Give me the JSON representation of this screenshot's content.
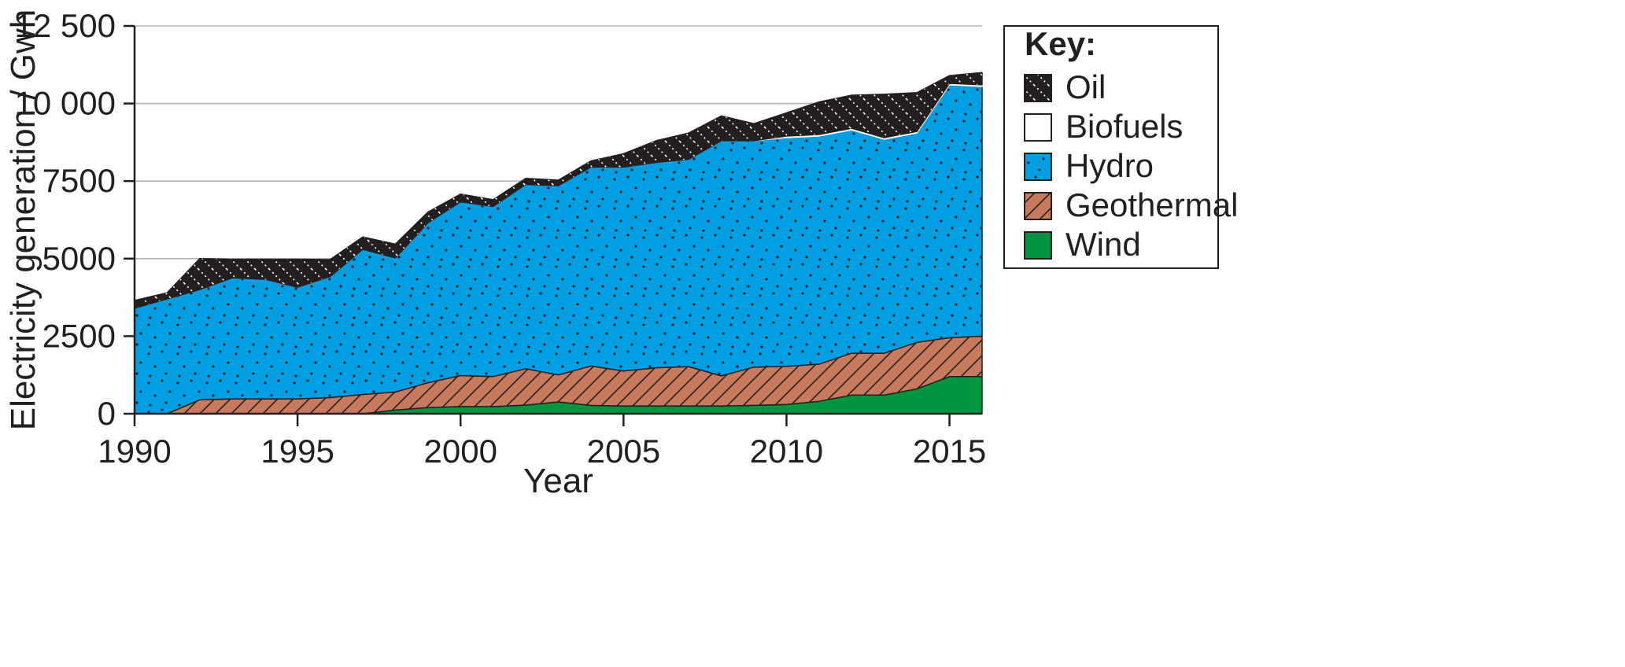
{
  "chart_data": {
    "type": "area",
    "stacked": true,
    "xlabel": "Year",
    "ylabel": "Electricity generation / Gwh",
    "xlim": [
      1990,
      2016
    ],
    "ylim": [
      0,
      12500
    ],
    "x_ticks": [
      1990,
      1995,
      2000,
      2005,
      2010,
      2015
    ],
    "y_ticks": [
      0,
      2500,
      5000,
      7500,
      10000,
      12500
    ],
    "y_tick_labels": [
      "0",
      "2500",
      "5000",
      "7500",
      "10 000",
      "12 500"
    ],
    "grid": "horizontal",
    "legend": {
      "title": "Key:",
      "position": "right"
    },
    "x": [
      1990,
      1991,
      1992,
      1993,
      1994,
      1995,
      1996,
      1997,
      1998,
      1999,
      2000,
      2001,
      2002,
      2003,
      2004,
      2005,
      2006,
      2007,
      2008,
      2009,
      2010,
      2011,
      2012,
      2013,
      2014,
      2015,
      2016
    ],
    "series": [
      {
        "name": "Wind",
        "color": "#009640",
        "pattern": "none",
        "values": [
          0,
          0,
          0,
          0,
          0,
          0,
          0,
          0,
          120,
          200,
          230,
          230,
          280,
          380,
          270,
          250,
          250,
          250,
          250,
          270,
          300,
          400,
          600,
          600,
          800,
          1200,
          1200
        ]
      },
      {
        "name": "Geothermal",
        "color": "#c87a5e",
        "pattern": "hatch",
        "values": [
          0,
          0,
          450,
          480,
          480,
          480,
          520,
          620,
          580,
          800,
          1000,
          970,
          1170,
          870,
          1270,
          1130,
          1230,
          1270,
          970,
          1230,
          1230,
          1200,
          1350,
          1350,
          1500,
          1250,
          1300
        ]
      },
      {
        "name": "Hydro",
        "color": "#009fe3",
        "pattern": "dots",
        "values": [
          3400,
          3700,
          3550,
          3900,
          3850,
          3600,
          3900,
          4680,
          4320,
          5150,
          5600,
          5480,
          5940,
          6100,
          6410,
          6570,
          6620,
          6680,
          7580,
          7300,
          7370,
          7350,
          7200,
          6900,
          6750,
          8150,
          8050
        ]
      },
      {
        "name": "Biofuels",
        "color": "#ffffff",
        "pattern": "none",
        "values": [
          0,
          0,
          0,
          0,
          0,
          0,
          0,
          0,
          0,
          0,
          0,
          0,
          0,
          0,
          0,
          0,
          0,
          0,
          0,
          0,
          50,
          50,
          50,
          50,
          50,
          50,
          50
        ]
      },
      {
        "name": "Oil",
        "color": "#231f20",
        "pattern": "dots-white",
        "values": [
          250,
          200,
          1000,
          600,
          650,
          900,
          550,
          400,
          450,
          350,
          250,
          220,
          200,
          180,
          200,
          430,
          700,
          850,
          800,
          550,
          750,
          1050,
          1070,
          1400,
          1250,
          250,
          400
        ]
      }
    ]
  }
}
